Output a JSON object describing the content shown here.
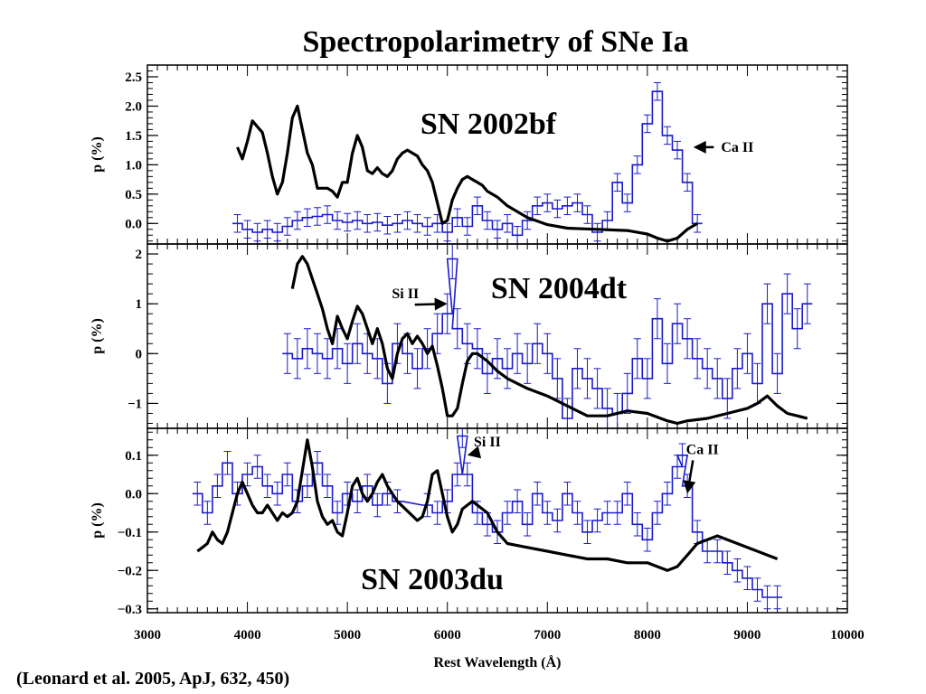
{
  "title": "Spectropolarimetry of SNe Ia",
  "citation": "(Leonard et al. 2005, ApJ, 632, 450)",
  "colors": {
    "polarization": "#1a1acc",
    "flux": "#000000"
  },
  "chart_data": {
    "type": "line",
    "xlabel": "Rest Wavelength (Å)",
    "xlim": [
      3000,
      10000
    ],
    "xticks": [
      3000,
      4000,
      5000,
      6000,
      7000,
      8000,
      9000,
      10000
    ],
    "xtick_labels": [
      "3000",
      "4000",
      "5000",
      "6000",
      "7000",
      "8000",
      "9000",
      "10000"
    ],
    "panels": [
      {
        "name": "SN 2002bf",
        "ylabel": "p (%)",
        "ylim": [
          -0.35,
          2.7
        ],
        "yticks": [
          0.0,
          0.5,
          1.0,
          1.5,
          2.0,
          2.5
        ],
        "ytick_labels": [
          "0.0",
          "0.5",
          "1.0",
          "1.5",
          "2.0",
          "2.5"
        ],
        "annotations": [
          {
            "text": "Ca II",
            "x": 8900,
            "y": 1.3,
            "arrow_to": [
              8460,
              1.3
            ]
          }
        ],
        "polarization": {
          "x": [
            3900,
            4000,
            4100,
            4200,
            4300,
            4400,
            4500,
            4600,
            4700,
            4800,
            4900,
            5000,
            5100,
            5200,
            5300,
            5400,
            5500,
            5600,
            5700,
            5800,
            5900,
            6000,
            6100,
            6200,
            6300,
            6400,
            6500,
            6600,
            6700,
            6800,
            6900,
            7000,
            7100,
            7200,
            7300,
            7400,
            7500,
            7600,
            7700,
            7800,
            7900,
            8000,
            8100,
            8200,
            8300,
            8400,
            8500
          ],
          "y": [
            0.0,
            -0.1,
            -0.15,
            -0.1,
            -0.15,
            -0.05,
            0.05,
            0.1,
            0.12,
            0.15,
            0.05,
            0.02,
            0.05,
            0.0,
            0.02,
            -0.03,
            0.0,
            0.05,
            0.0,
            -0.05,
            0.0,
            -0.15,
            0.1,
            -0.05,
            0.3,
            0.05,
            -0.1,
            0.0,
            -0.2,
            0.05,
            0.3,
            0.35,
            0.25,
            0.3,
            0.35,
            0.15,
            -0.15,
            0.05,
            0.7,
            0.35,
            1.0,
            1.7,
            2.25,
            1.5,
            1.25,
            0.7,
            0.0
          ],
          "err": 0.15
        },
        "flux": {
          "x": [
            3900,
            3950,
            4000,
            4050,
            4100,
            4150,
            4200,
            4250,
            4300,
            4350,
            4400,
            4450,
            4500,
            4550,
            4600,
            4650,
            4700,
            4750,
            4800,
            4850,
            4900,
            4950,
            5000,
            5050,
            5100,
            5150,
            5200,
            5250,
            5300,
            5350,
            5400,
            5450,
            5500,
            5550,
            5600,
            5650,
            5700,
            5750,
            5800,
            5850,
            5900,
            5950,
            6000,
            6050,
            6100,
            6150,
            6200,
            6250,
            6300,
            6350,
            6400,
            6500,
            6600,
            6800,
            7000,
            7200,
            7500,
            7800,
            8000,
            8100,
            8200,
            8300,
            8400,
            8500
          ],
          "y": [
            1.3,
            1.1,
            1.4,
            1.75,
            1.65,
            1.55,
            1.2,
            0.8,
            0.5,
            0.7,
            1.2,
            1.8,
            2.0,
            1.6,
            1.2,
            1.0,
            0.6,
            0.6,
            0.6,
            0.55,
            0.45,
            0.7,
            0.7,
            1.2,
            1.5,
            1.3,
            0.9,
            0.85,
            0.95,
            0.85,
            0.8,
            0.9,
            1.1,
            1.2,
            1.25,
            1.2,
            1.15,
            1.0,
            0.9,
            0.7,
            0.35,
            0.0,
            0.05,
            0.4,
            0.6,
            0.75,
            0.8,
            0.75,
            0.7,
            0.65,
            0.55,
            0.45,
            0.3,
            0.1,
            -0.02,
            -0.08,
            -0.1,
            -0.12,
            -0.18,
            -0.25,
            -0.3,
            -0.25,
            -0.1,
            0.0
          ]
        }
      },
      {
        "name": "SN 2004dt",
        "ylabel": "p (%)",
        "ylim": [
          -1.5,
          2.2
        ],
        "yticks": [
          -1,
          0,
          1,
          2
        ],
        "ytick_labels": [
          "−1",
          "0",
          "1",
          "2"
        ],
        "annotations": [
          {
            "text": "Si II",
            "x": 5580,
            "y": 1.2,
            "arrow_to": [
              6000,
              1.0
            ]
          }
        ],
        "polarization": {
          "x": [
            4400,
            4500,
            4600,
            4700,
            4800,
            4900,
            5000,
            5100,
            5200,
            5300,
            5400,
            5500,
            5600,
            5700,
            5800,
            5900,
            6000,
            6050,
            6100,
            6200,
            6300,
            6400,
            6500,
            6600,
            6700,
            6800,
            6900,
            7000,
            7100,
            7200,
            7300,
            7400,
            7500,
            7600,
            7700,
            7800,
            7900,
            8000,
            8100,
            8200,
            8300,
            8400,
            8500,
            8600,
            8700,
            8800,
            8900,
            9000,
            9100,
            9200,
            9300,
            9400,
            9500,
            9600
          ],
          "y": [
            0.0,
            -0.1,
            0.1,
            0.0,
            -0.1,
            0.1,
            -0.2,
            0.2,
            0.0,
            -0.1,
            -0.6,
            0.2,
            0.0,
            -0.3,
            0.1,
            0.4,
            0.8,
            1.9,
            0.5,
            0.2,
            0.1,
            -0.4,
            -0.1,
            -0.3,
            0.0,
            -0.2,
            0.2,
            0.0,
            -0.5,
            -1.3,
            -0.3,
            -0.5,
            -0.7,
            -1.1,
            -1.2,
            -0.8,
            -0.1,
            -0.5,
            0.7,
            -0.2,
            0.6,
            0.3,
            -0.1,
            -0.3,
            -0.5,
            -0.9,
            -0.3,
            0.0,
            -0.6,
            1.0,
            -0.4,
            1.2,
            0.5,
            1.0
          ],
          "err": 0.4
        },
        "flux": {
          "x": [
            4450,
            4500,
            4550,
            4600,
            4650,
            4700,
            4750,
            4800,
            4850,
            4900,
            4950,
            5000,
            5050,
            5100,
            5150,
            5200,
            5250,
            5300,
            5350,
            5400,
            5450,
            5500,
            5550,
            5600,
            5650,
            5700,
            5750,
            5800,
            5850,
            5900,
            5950,
            6000,
            6050,
            6100,
            6150,
            6200,
            6250,
            6300,
            6400,
            6500,
            6600,
            6800,
            7000,
            7200,
            7400,
            7600,
            7800,
            8000,
            8200,
            8300,
            8400,
            8600,
            8800,
            9000,
            9100,
            9200,
            9300,
            9400,
            9500,
            9600
          ],
          "y": [
            1.3,
            1.8,
            1.95,
            1.8,
            1.5,
            1.2,
            0.9,
            0.5,
            0.2,
            0.75,
            0.5,
            0.3,
            0.65,
            0.95,
            0.8,
            0.5,
            0.2,
            0.5,
            0.2,
            -0.3,
            -0.5,
            0.0,
            0.3,
            0.4,
            0.2,
            0.35,
            0.2,
            0.0,
            0.15,
            -0.25,
            -0.7,
            -1.25,
            -1.25,
            -1.1,
            -0.6,
            -0.15,
            0.0,
            0.0,
            -0.15,
            -0.35,
            -0.5,
            -0.7,
            -0.85,
            -1.05,
            -1.25,
            -1.25,
            -1.15,
            -1.2,
            -1.35,
            -1.4,
            -1.35,
            -1.3,
            -1.2,
            -1.1,
            -1.0,
            -0.85,
            -1.05,
            -1.2,
            -1.25,
            -1.3
          ]
        }
      },
      {
        "name": "SN 2003du",
        "ylabel": "p (%)",
        "ylim": [
          -0.31,
          0.17
        ],
        "yticks": [
          -0.3,
          -0.2,
          -0.1,
          0.0,
          0.1
        ],
        "ytick_labels": [
          "−0.3",
          "−0.2",
          "−0.1",
          "0.0",
          "0.1"
        ],
        "annotations": [
          {
            "text": "Si II",
            "x": 6400,
            "y": 0.135,
            "arrow_to": [
              6200,
              0.1
            ]
          },
          {
            "text": "Ca II",
            "x": 8550,
            "y": 0.115,
            "arrow_to": [
              8400,
              0.0
            ]
          }
        ],
        "polarization": {
          "x": [
            3500,
            3600,
            3700,
            3800,
            3900,
            4000,
            4100,
            4200,
            4300,
            4400,
            4500,
            4600,
            4700,
            4800,
            4900,
            5000,
            5100,
            5200,
            5300,
            5400,
            5500,
            5800,
            5900,
            6000,
            6100,
            6150,
            6200,
            6300,
            6400,
            6500,
            6600,
            6700,
            6800,
            6900,
            7000,
            7100,
            7200,
            7300,
            7400,
            7500,
            7600,
            7700,
            7800,
            7900,
            8000,
            8100,
            8200,
            8300,
            8350,
            8400,
            8500,
            8600,
            8700,
            8800,
            8900,
            9000,
            9100,
            9200,
            9300
          ],
          "y": [
            0.0,
            -0.05,
            0.02,
            0.08,
            0.0,
            0.05,
            0.07,
            0.02,
            0.0,
            0.05,
            -0.02,
            0.02,
            0.08,
            0.02,
            -0.05,
            0.0,
            -0.02,
            0.02,
            -0.03,
            0.0,
            -0.02,
            -0.03,
            -0.05,
            -0.02,
            0.05,
            0.15,
            0.05,
            -0.05,
            -0.08,
            -0.1,
            -0.05,
            -0.02,
            -0.08,
            0.0,
            -0.05,
            -0.07,
            0.0,
            -0.05,
            -0.1,
            -0.07,
            -0.05,
            -0.05,
            0.0,
            -0.08,
            -0.12,
            -0.05,
            0.0,
            0.07,
            0.1,
            0.02,
            -0.1,
            -0.15,
            -0.15,
            -0.18,
            -0.2,
            -0.22,
            -0.25,
            -0.27,
            -0.27
          ],
          "err": 0.03
        },
        "flux": {
          "x": [
            3500,
            3550,
            3600,
            3650,
            3700,
            3750,
            3800,
            3850,
            3900,
            3950,
            4000,
            4050,
            4100,
            4150,
            4200,
            4250,
            4300,
            4350,
            4400,
            4450,
            4500,
            4550,
            4600,
            4650,
            4700,
            4750,
            4800,
            4850,
            4900,
            4950,
            5000,
            5050,
            5100,
            5150,
            5200,
            5250,
            5300,
            5350,
            5400,
            5450,
            5500,
            5700,
            5750,
            5800,
            5850,
            5900,
            5950,
            6000,
            6050,
            6100,
            6150,
            6200,
            6250,
            6300,
            6400,
            6500,
            6600,
            6800,
            7000,
            7200,
            7400,
            7600,
            7800,
            8000,
            8100,
            8200,
            8300,
            8400,
            8500,
            8600,
            8700,
            8800,
            8900,
            9000,
            9100,
            9200,
            9300
          ],
          "y": [
            -0.15,
            -0.14,
            -0.13,
            -0.1,
            -0.12,
            -0.13,
            -0.1,
            -0.05,
            0.0,
            0.03,
            0.0,
            -0.03,
            -0.05,
            -0.05,
            -0.03,
            -0.05,
            -0.07,
            -0.05,
            -0.06,
            -0.05,
            -0.02,
            0.06,
            0.14,
            0.07,
            -0.02,
            -0.06,
            -0.08,
            -0.07,
            -0.1,
            -0.11,
            -0.05,
            0.02,
            0.04,
            0.0,
            -0.02,
            0.0,
            0.03,
            0.05,
            0.02,
            0.0,
            -0.02,
            -0.07,
            -0.06,
            -0.02,
            0.05,
            0.06,
            0.0,
            -0.06,
            -0.1,
            -0.08,
            -0.04,
            -0.03,
            -0.02,
            -0.03,
            -0.05,
            -0.1,
            -0.13,
            -0.14,
            -0.15,
            -0.16,
            -0.17,
            -0.17,
            -0.18,
            -0.18,
            -0.19,
            -0.2,
            -0.19,
            -0.16,
            -0.13,
            -0.12,
            -0.11,
            -0.12,
            -0.13,
            -0.14,
            -0.15,
            -0.16,
            -0.17
          ]
        }
      }
    ]
  }
}
